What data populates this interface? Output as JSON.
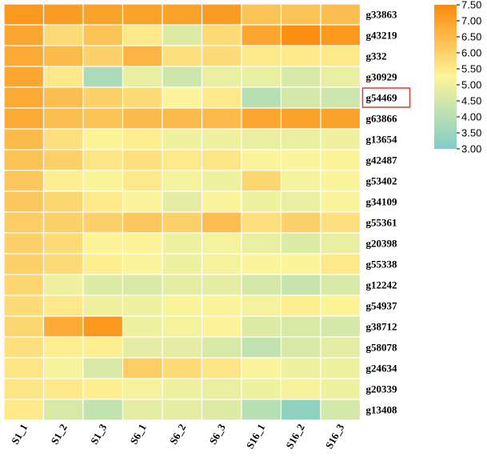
{
  "chart_data": {
    "type": "heatmap",
    "rows": [
      "g33863",
      "g43219",
      "g332",
      "g30929",
      "g54469",
      "g63866",
      "g13654",
      "g42487",
      "g53402",
      "g34109",
      "g55361",
      "g20398",
      "g55338",
      "g12242",
      "g54937",
      "g38712",
      "g58078",
      "g24634",
      "g20339",
      "g13408"
    ],
    "columns": [
      "S1_1",
      "S1_2",
      "S1_3",
      "S6_1",
      "S6_2",
      "S6_3",
      "S16_1",
      "S16_2",
      "S16_3"
    ],
    "values": [
      [
        7.2,
        7.1,
        7.0,
        7.0,
        7.0,
        7.1,
        6.3,
        6.3,
        6.4
      ],
      [
        6.9,
        5.8,
        6.3,
        5.5,
        4.7,
        5.8,
        6.9,
        7.4,
        7.2
      ],
      [
        6.8,
        6.5,
        6.0,
        6.6,
        5.7,
        5.8,
        5.5,
        5.5,
        5.5
      ],
      [
        6.9,
        5.5,
        3.8,
        4.9,
        4.4,
        4.9,
        4.9,
        4.6,
        4.9
      ],
      [
        6.8,
        6.4,
        6.0,
        5.8,
        5.2,
        5.5,
        4.0,
        4.5,
        4.4
      ],
      [
        6.8,
        6.4,
        6.3,
        6.5,
        6.5,
        6.5,
        6.9,
        7.0,
        7.0
      ],
      [
        6.5,
        5.7,
        5.3,
        5.4,
        5.0,
        5.0,
        4.9,
        4.9,
        5.0
      ],
      [
        6.3,
        6.0,
        5.6,
        5.7,
        5.5,
        5.6,
        5.2,
        5.2,
        5.3
      ],
      [
        6.2,
        5.4,
        5.2,
        5.5,
        5.1,
        5.0,
        5.9,
        5.1,
        5.2
      ],
      [
        6.2,
        5.9,
        5.5,
        5.2,
        4.8,
        5.2,
        5.0,
        4.9,
        5.2
      ],
      [
        6.1,
        6.0,
        6.0,
        6.2,
        6.0,
        6.4,
        5.7,
        6.0,
        5.7
      ],
      [
        6.0,
        5.8,
        5.3,
        5.3,
        5.0,
        5.1,
        4.9,
        4.7,
        4.9
      ],
      [
        6.0,
        5.8,
        5.4,
        5.2,
        5.0,
        5.1,
        5.2,
        5.3,
        5.5
      ],
      [
        5.9,
        5.0,
        4.7,
        4.6,
        4.8,
        4.8,
        4.5,
        4.3,
        4.6
      ],
      [
        5.8,
        5.5,
        5.0,
        5.0,
        5.2,
        5.2,
        5.1,
        5.4,
        5.3
      ],
      [
        5.9,
        6.8,
        7.2,
        5.0,
        5.1,
        5.3,
        4.7,
        4.6,
        4.5
      ],
      [
        5.7,
        5.4,
        5.4,
        4.8,
        4.8,
        4.6,
        4.2,
        4.6,
        4.8
      ],
      [
        5.6,
        5.1,
        4.6,
        6.1,
        5.8,
        5.6,
        5.2,
        5.0,
        5.0
      ],
      [
        5.6,
        5.5,
        5.4,
        5.1,
        5.0,
        4.9,
        5.0,
        5.1,
        5.0
      ],
      [
        5.5,
        4.6,
        4.2,
        4.8,
        4.8,
        4.7,
        4.0,
        3.3,
        4.5
      ]
    ],
    "highlighted_row": "g54469",
    "colorbar": {
      "min": 3.0,
      "max": 7.5,
      "ticks": [
        "7.50",
        "7.00",
        "6.50",
        "6.00",
        "5.50",
        "5.00",
        "4.50",
        "4.00",
        "3.50",
        "3.00"
      ],
      "colors": [
        "#7ecdc8",
        "#fdf59a",
        "#fb8a0b"
      ]
    },
    "highlight_color": "#d0402f",
    "grid": true
  }
}
